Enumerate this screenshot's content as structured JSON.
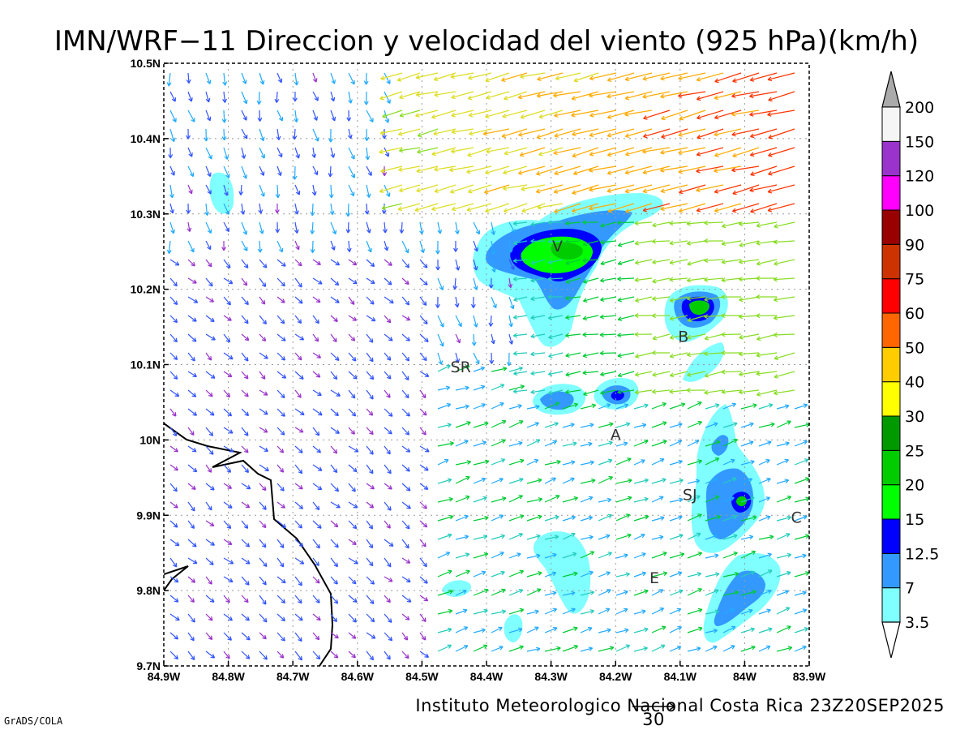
{
  "title": "IMN/WRF−11 Direccion y velocidad del viento (925 hPa)(km/h)",
  "footer": "Instituto Meteorologico Nacional Costa Rica 23Z20SEP2025",
  "credit": "GrADS/COLA",
  "vector_ref_label": "30",
  "x_ticks": [
    "84.9W",
    "84.8W",
    "84.7W",
    "84.6W",
    "84.5W",
    "84.4W",
    "84.3W",
    "84.2W",
    "84.1W",
    "84W",
    "83.9W"
  ],
  "y_ticks": [
    "10.5N",
    "10.4N",
    "10.3N",
    "10.2N",
    "10.1N",
    "10N",
    "9.9N",
    "9.8N",
    "9.7N"
  ],
  "cities": [
    {
      "label": "V",
      "lon": -84.29,
      "lat": 10.25
    },
    {
      "label": "SR",
      "lon": -84.44,
      "lat": 10.09
    },
    {
      "label": "B",
      "lon": -84.095,
      "lat": 10.13
    },
    {
      "label": "A",
      "lon": -84.2,
      "lat": 10.0
    },
    {
      "label": "SJ",
      "lon": -84.085,
      "lat": 9.92
    },
    {
      "label": "C",
      "lon": -83.92,
      "lat": 9.89
    },
    {
      "label": "E",
      "lon": -84.14,
      "lat": 9.81
    }
  ],
  "colorbar": {
    "levels": [
      "3.5",
      "7",
      "12.5",
      "15",
      "20",
      "25",
      "30",
      "40",
      "50",
      "60",
      "75",
      "90",
      "100",
      "120",
      "150",
      "200"
    ],
    "colors": [
      "#7fffff",
      "#3399ff",
      "#0000ff",
      "#00ff00",
      "#00cc00",
      "#009900",
      "#ffff00",
      "#ffcc00",
      "#ff6600",
      "#ff0000",
      "#cc3300",
      "#990000",
      "#ff00ff",
      "#9933cc",
      "#f5f5f5",
      "#aaaaaa"
    ]
  },
  "chart_data": {
    "type": "map-vector-field",
    "lon_range": [
      -84.9,
      -83.9
    ],
    "lat_range": [
      9.7,
      10.5
    ],
    "units": "km/h",
    "shaded_regions": [
      {
        "name": "V-core",
        "lon": -84.28,
        "lat": 10.255,
        "levels": [
          3.5,
          7,
          12.5,
          15,
          20
        ]
      },
      {
        "name": "B-core",
        "lon": -84.07,
        "lat": 10.175,
        "levels": [
          3.5,
          7,
          12.5,
          20
        ]
      },
      {
        "name": "A-west",
        "lon": -84.29,
        "lat": 10.05,
        "levels": [
          3.5,
          7
        ]
      },
      {
        "name": "A-east",
        "lon": -84.2,
        "lat": 10.06,
        "levels": [
          3.5,
          7,
          12.5
        ]
      },
      {
        "name": "SJ-core",
        "lon": -84.02,
        "lat": 9.92,
        "levels": [
          3.5,
          7,
          12.5,
          15
        ]
      },
      {
        "name": "south-east",
        "lon": -84.02,
        "lat": 9.79,
        "levels": [
          3.5,
          7
        ]
      },
      {
        "name": "south-central",
        "lon": -84.27,
        "lat": 9.8,
        "levels": [
          3.5
        ]
      },
      {
        "name": "north-west",
        "lon": -84.78,
        "lat": 10.34,
        "levels": [
          3.5
        ]
      }
    ]
  }
}
